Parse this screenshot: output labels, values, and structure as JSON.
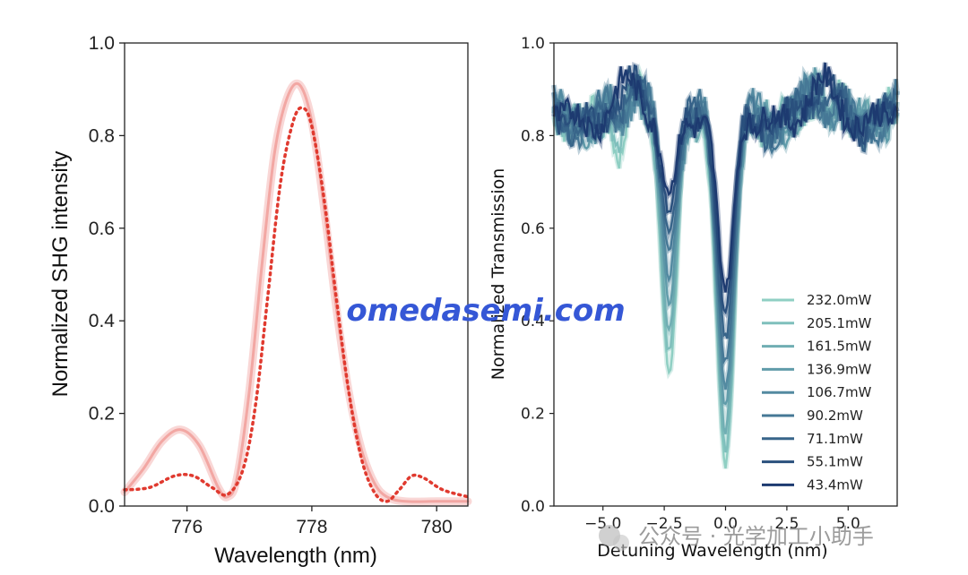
{
  "watermark": "omedasemi.com",
  "wechat_label": "公众号 · 光学加工小助手",
  "chart_data": [
    {
      "type": "line",
      "title": "",
      "xlabel": "Wavelength (nm)",
      "ylabel": "Normalized SHG intensity",
      "xlim": [
        775,
        780.5
      ],
      "ylim": [
        0,
        1.0
      ],
      "xticks": [
        776,
        778,
        780
      ],
      "yticks": [
        0.0,
        0.2,
        0.4,
        0.6,
        0.8,
        1.0
      ],
      "xtick_labels": [
        "776",
        "778",
        "780"
      ],
      "ytick_labels": [
        "0.0",
        "0.2",
        "0.4",
        "0.6",
        "0.8",
        "1.0"
      ],
      "grid": false,
      "series": [
        {
          "style": "solid band",
          "color": "#f2a7a3",
          "x": [
            775.0,
            775.3,
            775.6,
            775.9,
            776.2,
            776.5,
            776.65,
            776.8,
            777.0,
            777.2,
            777.4,
            777.6,
            777.8,
            778.0,
            778.2,
            778.4,
            778.6,
            778.8,
            779.0,
            779.2,
            779.5,
            780.0,
            780.5
          ],
          "y": [
            0.03,
            0.08,
            0.14,
            0.165,
            0.13,
            0.04,
            0.02,
            0.06,
            0.25,
            0.52,
            0.76,
            0.88,
            0.91,
            0.83,
            0.64,
            0.42,
            0.24,
            0.12,
            0.05,
            0.02,
            0.01,
            0.01,
            0.01
          ]
        },
        {
          "style": "dotted",
          "color": "#e03a2f",
          "x": [
            775.0,
            775.4,
            775.8,
            776.1,
            776.4,
            776.65,
            776.9,
            777.1,
            777.3,
            777.5,
            777.7,
            777.85,
            778.0,
            778.2,
            778.4,
            778.6,
            778.8,
            779.0,
            779.2,
            779.4,
            779.6,
            779.8,
            780.1,
            780.5
          ],
          "y": [
            0.035,
            0.04,
            0.065,
            0.065,
            0.04,
            0.025,
            0.08,
            0.22,
            0.46,
            0.7,
            0.83,
            0.86,
            0.82,
            0.66,
            0.44,
            0.24,
            0.1,
            0.03,
            0.01,
            0.035,
            0.065,
            0.06,
            0.035,
            0.02
          ]
        }
      ]
    },
    {
      "type": "line",
      "title": "",
      "xlabel": "Detuning Wavelength (nm)",
      "ylabel": "Normalized Transmission",
      "xlim": [
        -7,
        7
      ],
      "ylim": [
        0,
        1.0
      ],
      "xticks": [
        -5.0,
        -2.5,
        0.0,
        2.5,
        5.0
      ],
      "yticks": [
        0.0,
        0.2,
        0.4,
        0.6,
        0.8,
        1.0
      ],
      "xtick_labels": [
        "−5.0",
        "−2.5",
        "0.0",
        "2.5",
        "5.0"
      ],
      "ytick_labels": [
        "0.0",
        "0.2",
        "0.4",
        "0.6",
        "0.8",
        "1.0"
      ],
      "grid": false,
      "legend_position": "lower-right",
      "series": [
        {
          "name": "232.0mW",
          "color": "#8fcfc3",
          "dip1": 0.29,
          "dip2": 0.09
        },
        {
          "name": "205.1mW",
          "color": "#7fbfbc",
          "dip1": 0.33,
          "dip2": 0.12
        },
        {
          "name": "161.5mW",
          "color": "#70aeb3",
          "dip1": 0.38,
          "dip2": 0.16
        },
        {
          "name": "136.9mW",
          "color": "#609caa",
          "dip1": 0.44,
          "dip2": 0.21
        },
        {
          "name": "106.7mW",
          "color": "#538aa1",
          "dip1": 0.5,
          "dip2": 0.26
        },
        {
          "name": "90.2mW",
          "color": "#467896",
          "dip1": 0.55,
          "dip2": 0.31
        },
        {
          "name": "71.1mW",
          "color": "#38658a",
          "dip1": 0.6,
          "dip2": 0.36
        },
        {
          "name": "55.1mW",
          "color": "#2a507d",
          "dip1": 0.64,
          "dip2": 0.42
        },
        {
          "name": "43.4mW",
          "color": "#1d3a70",
          "dip1": 0.68,
          "dip2": 0.47
        }
      ]
    }
  ]
}
